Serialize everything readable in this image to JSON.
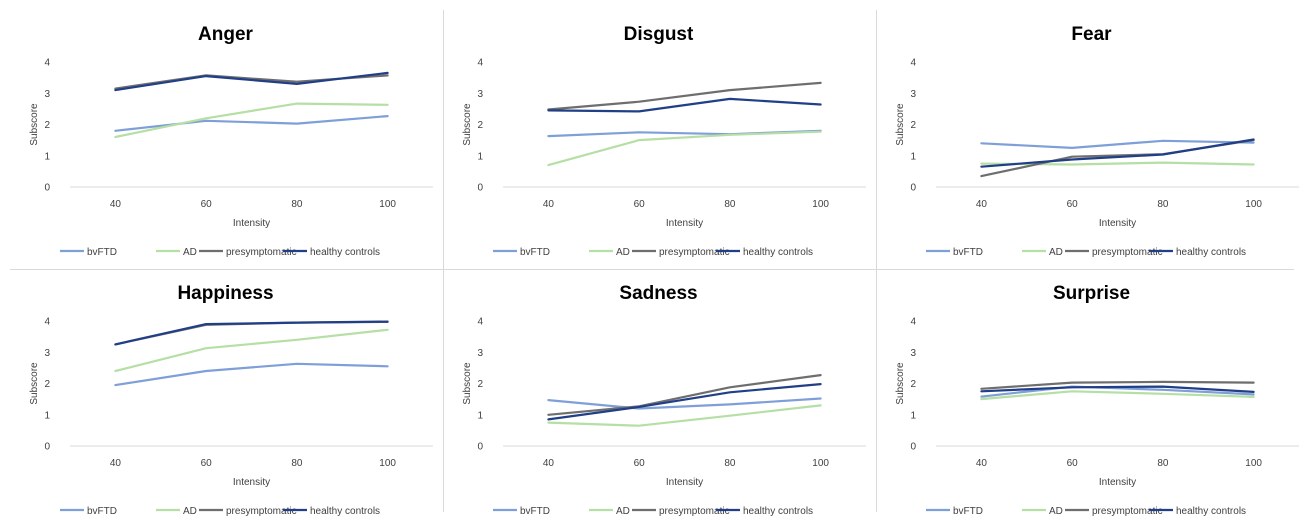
{
  "chart_data": [
    {
      "type": "line",
      "title": "Anger",
      "xlabel": "Intensity",
      "ylabel": "Subscore",
      "categories": [
        "40",
        "60",
        "80",
        "100"
      ],
      "yticks": [
        "0",
        "1",
        "2",
        "3",
        "4"
      ],
      "ylim": [
        0,
        4
      ],
      "grid": false,
      "legend_position": "bottom",
      "series": [
        {
          "name": "bvFTD",
          "values": [
            1.8,
            2.12,
            2.03,
            2.27
          ]
        },
        {
          "name": "AD",
          "values": [
            1.6,
            2.2,
            2.67,
            2.63
          ]
        },
        {
          "name": "presymptomatic",
          "values": [
            3.15,
            3.57,
            3.37,
            3.57
          ]
        },
        {
          "name": "healthy controls",
          "values": [
            3.1,
            3.55,
            3.3,
            3.65
          ]
        }
      ]
    },
    {
      "type": "line",
      "title": "Disgust",
      "xlabel": "Intensity",
      "ylabel": "Subscore",
      "categories": [
        "40",
        "60",
        "80",
        "100"
      ],
      "yticks": [
        "0",
        "1",
        "2",
        "3",
        "4"
      ],
      "ylim": [
        0,
        4
      ],
      "grid": false,
      "legend_position": "bottom",
      "series": [
        {
          "name": "bvFTD",
          "values": [
            1.63,
            1.75,
            1.69,
            1.8
          ]
        },
        {
          "name": "AD",
          "values": [
            0.7,
            1.5,
            1.67,
            1.77
          ]
        },
        {
          "name": "presymptomatic",
          "values": [
            2.48,
            2.73,
            3.1,
            3.33
          ]
        },
        {
          "name": "healthy controls",
          "values": [
            2.45,
            2.42,
            2.82,
            2.64
          ]
        }
      ]
    },
    {
      "type": "line",
      "title": "Fear",
      "xlabel": "Intensity",
      "ylabel": "Subscore",
      "categories": [
        "40",
        "60",
        "80",
        "100"
      ],
      "yticks": [
        "0",
        "1",
        "2",
        "3",
        "4"
      ],
      "ylim": [
        0,
        4
      ],
      "grid": false,
      "legend_position": "bottom",
      "series": [
        {
          "name": "bvFTD",
          "values": [
            1.4,
            1.25,
            1.48,
            1.42
          ]
        },
        {
          "name": "AD",
          "values": [
            0.75,
            0.72,
            0.78,
            0.72
          ]
        },
        {
          "name": "presymptomatic",
          "values": [
            0.35,
            0.97,
            1.05,
            1.5
          ]
        },
        {
          "name": "healthy controls",
          "values": [
            0.65,
            0.88,
            1.04,
            1.52
          ]
        }
      ]
    },
    {
      "type": "line",
      "title": "Happiness",
      "xlabel": "Intensity",
      "ylabel": "Subscore",
      "categories": [
        "40",
        "60",
        "80",
        "100"
      ],
      "yticks": [
        "0",
        "1",
        "2",
        "3",
        "4"
      ],
      "ylim": [
        0,
        4
      ],
      "grid": false,
      "legend_position": "bottom",
      "series": [
        {
          "name": "bvFTD",
          "values": [
            1.95,
            2.4,
            2.63,
            2.55
          ]
        },
        {
          "name": "AD",
          "values": [
            2.4,
            3.13,
            3.4,
            3.72
          ]
        },
        {
          "name": "presymptomatic",
          "values": [
            3.25,
            3.88,
            3.95,
            3.97
          ]
        },
        {
          "name": "healthy controls",
          "values": [
            3.25,
            3.9,
            3.95,
            3.98
          ]
        }
      ]
    },
    {
      "type": "line",
      "title": "Sadness",
      "xlabel": "Intensity",
      "ylabel": "Subscore",
      "categories": [
        "40",
        "60",
        "80",
        "100"
      ],
      "yticks": [
        "0",
        "1",
        "2",
        "3",
        "4"
      ],
      "ylim": [
        0,
        4
      ],
      "grid": false,
      "legend_position": "bottom",
      "series": [
        {
          "name": "bvFTD",
          "values": [
            1.47,
            1.2,
            1.33,
            1.52
          ]
        },
        {
          "name": "AD",
          "values": [
            0.75,
            0.65,
            0.97,
            1.3
          ]
        },
        {
          "name": "presymptomatic",
          "values": [
            1.0,
            1.27,
            1.88,
            2.27
          ]
        },
        {
          "name": "healthy controls",
          "values": [
            0.85,
            1.25,
            1.72,
            1.98
          ]
        }
      ]
    },
    {
      "type": "line",
      "title": "Surprise",
      "xlabel": "Intensity",
      "ylabel": "Subscore",
      "categories": [
        "40",
        "60",
        "80",
        "100"
      ],
      "yticks": [
        "0",
        "1",
        "2",
        "3",
        "4"
      ],
      "ylim": [
        0,
        4
      ],
      "grid": false,
      "legend_position": "bottom",
      "series": [
        {
          "name": "bvFTD",
          "values": [
            1.58,
            1.9,
            1.8,
            1.65
          ]
        },
        {
          "name": "AD",
          "values": [
            1.5,
            1.75,
            1.67,
            1.57
          ]
        },
        {
          "name": "presymptomatic",
          "values": [
            1.83,
            2.03,
            2.05,
            2.03
          ]
        },
        {
          "name": "healthy controls",
          "values": [
            1.75,
            1.88,
            1.9,
            1.73
          ]
        }
      ]
    }
  ],
  "colors": {
    "bvFTD": "#7f9fd8",
    "AD": "#b5dfa4",
    "presymptomatic": "#6e6e6e",
    "healthy controls": "#203f87",
    "axis": "#d9d9d9",
    "divider": "#d9d9d9"
  }
}
